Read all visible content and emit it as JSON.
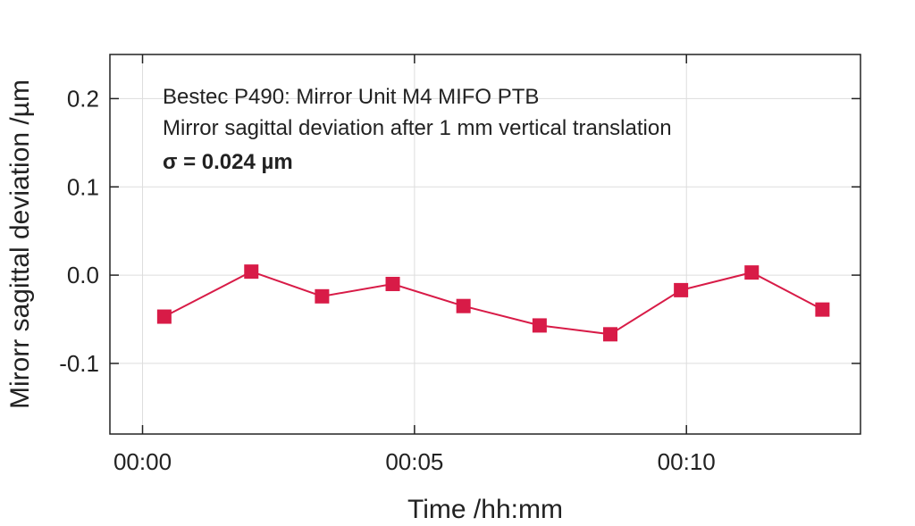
{
  "chart_data": {
    "type": "line",
    "title": "",
    "annotations": [
      "Bestec P490: Mirror Unit M4 MIFO PTB",
      "Mirror sagittal deviation after 1 mm vertical translation",
      "σ = 0.024 µm"
    ],
    "xlabel": "Time /hh:mm",
    "ylabel": "Mirorr sagittal deviation /µm",
    "x_unit": "minutes",
    "xlim": [
      -0.6,
      13.2
    ],
    "ylim": [
      -0.18,
      0.25
    ],
    "x_ticks": [
      {
        "value": 0,
        "label": "00:00"
      },
      {
        "value": 5,
        "label": "00:05"
      },
      {
        "value": 10,
        "label": "00:10"
      }
    ],
    "y_ticks": [
      {
        "value": 0.2,
        "label": "0.2"
      },
      {
        "value": 0.1,
        "label": "0.1"
      },
      {
        "value": 0.0,
        "label": "0.0"
      },
      {
        "value": -0.1,
        "label": "-0.1"
      }
    ],
    "grid": true,
    "legend": "none",
    "series": [
      {
        "color": "#d81b47",
        "marker": "square",
        "x": [
          0.4,
          2.0,
          3.3,
          4.6,
          5.9,
          7.3,
          8.6,
          9.9,
          11.2,
          12.5
        ],
        "y": [
          -0.047,
          0.004,
          -0.024,
          -0.01,
          -0.035,
          -0.057,
          -0.067,
          -0.017,
          0.003,
          -0.039
        ]
      }
    ]
  }
}
